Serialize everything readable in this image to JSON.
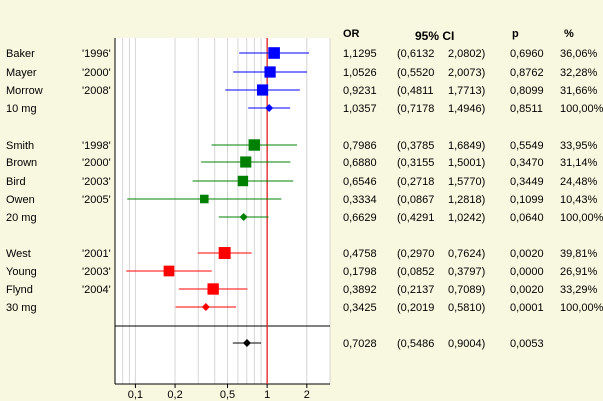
{
  "chart_data": {
    "type": "forest",
    "x_scale": "log",
    "xlim": [
      0.07,
      3
    ],
    "x_ticks": [
      0.1,
      0.2,
      0.5,
      1,
      2
    ],
    "x_tick_labels": [
      "0,1",
      "0,2",
      "0,5",
      "1",
      "2"
    ],
    "reference_line": 1,
    "grid": true,
    "columns": {
      "or": "OR",
      "ci": "95% CI",
      "p": "p",
      "weight": "%"
    },
    "groups": [
      {
        "color": "#0000ff",
        "studies": [
          {
            "name": "Baker",
            "year": "'1996'",
            "or": 1.1295,
            "lo": 0.6132,
            "hi": 2.0802,
            "or_text": "1,1295",
            "lo_text": "(0,6132",
            "hi_text": "2,0802)",
            "p_text": "0,6960",
            "w_text": "36,06%",
            "weight": 36.06
          },
          {
            "name": "Mayer",
            "year": "'2000'",
            "or": 1.0526,
            "lo": 0.552,
            "hi": 2.0073,
            "or_text": "1,0526",
            "lo_text": "(0,5520",
            "hi_text": "2,0073)",
            "p_text": "0,8762",
            "w_text": "32,28%",
            "weight": 32.28
          },
          {
            "name": "Morrow",
            "year": "'2008'",
            "or": 0.9231,
            "lo": 0.4811,
            "hi": 1.7713,
            "or_text": "0,9231",
            "lo_text": "(0,4811",
            "hi_text": "1,7713)",
            "p_text": "0,8099",
            "w_text": "31,66%",
            "weight": 31.66
          }
        ],
        "summary": {
          "name": "10 mg",
          "or": 1.0357,
          "lo": 0.7178,
          "hi": 1.4946,
          "or_text": "1,0357",
          "lo_text": "(0,7178",
          "hi_text": "1,4946)",
          "p_text": "0,8511",
          "w_text": "100,00%"
        }
      },
      {
        "color": "#008000",
        "studies": [
          {
            "name": "Smith",
            "year": "'1998'",
            "or": 0.7986,
            "lo": 0.3785,
            "hi": 1.6849,
            "or_text": "0,7986",
            "lo_text": "(0,3785",
            "hi_text": "1,6849)",
            "p_text": "0,5549",
            "w_text": "33,95%",
            "weight": 33.95
          },
          {
            "name": "Brown",
            "year": "'2000'",
            "or": 0.688,
            "lo": 0.3155,
            "hi": 1.5001,
            "or_text": "0,6880",
            "lo_text": "(0,3155",
            "hi_text": "1,5001)",
            "p_text": "0,3470",
            "w_text": "31,14%",
            "weight": 31.14
          },
          {
            "name": "Bird",
            "year": "'2003'",
            "or": 0.6546,
            "lo": 0.2718,
            "hi": 1.577,
            "or_text": "0,6546",
            "lo_text": "(0,2718",
            "hi_text": "1,5770)",
            "p_text": "0,3449",
            "w_text": "24,48%",
            "weight": 24.48
          },
          {
            "name": "Owen",
            "year": "'2005'",
            "or": 0.3334,
            "lo": 0.0867,
            "hi": 1.2818,
            "or_text": "0,3334",
            "lo_text": "(0,0867",
            "hi_text": "1,2818)",
            "p_text": "0,1099",
            "w_text": "10,43%",
            "weight": 10.43
          }
        ],
        "summary": {
          "name": "20 mg",
          "or": 0.6629,
          "lo": 0.4291,
          "hi": 1.0242,
          "or_text": "0,6629",
          "lo_text": "(0,4291",
          "hi_text": "1,0242)",
          "p_text": "0,0640",
          "w_text": "100,00%"
        }
      },
      {
        "color": "#ff0000",
        "studies": [
          {
            "name": "West",
            "year": "'2001'",
            "or": 0.4758,
            "lo": 0.297,
            "hi": 0.7624,
            "or_text": "0,4758",
            "lo_text": "(0,2970",
            "hi_text": "0,7624)",
            "p_text": "0,0020",
            "w_text": "39,81%",
            "weight": 39.81
          },
          {
            "name": "Young",
            "year": "'2003'",
            "or": 0.1798,
            "lo": 0.0852,
            "hi": 0.3797,
            "or_text": "0,1798",
            "lo_text": "(0,0852",
            "hi_text": "0,3797)",
            "p_text": "0,0000",
            "w_text": "26,91%",
            "weight": 26.91
          },
          {
            "name": "Flynd",
            "year": "'2004'",
            "or": 0.3892,
            "lo": 0.2137,
            "hi": 0.7089,
            "or_text": "0,3892",
            "lo_text": "(0,2137",
            "hi_text": "0,7089)",
            "p_text": "0,0020",
            "w_text": "33,29%",
            "weight": 33.29
          }
        ],
        "summary": {
          "name": "30 mg",
          "or": 0.3425,
          "lo": 0.2019,
          "hi": 0.581,
          "or_text": "0,3425",
          "lo_text": "(0,2019",
          "hi_text": "0,5810)",
          "p_text": "0,0001",
          "w_text": "100,00%"
        }
      }
    ],
    "overall": {
      "or": 0.7028,
      "lo": 0.5486,
      "hi": 0.9004,
      "color": "#000000",
      "or_text": "0,7028",
      "lo_text": "(0,5486",
      "hi_text": "0,9004)",
      "p_text": "0,0053"
    }
  }
}
